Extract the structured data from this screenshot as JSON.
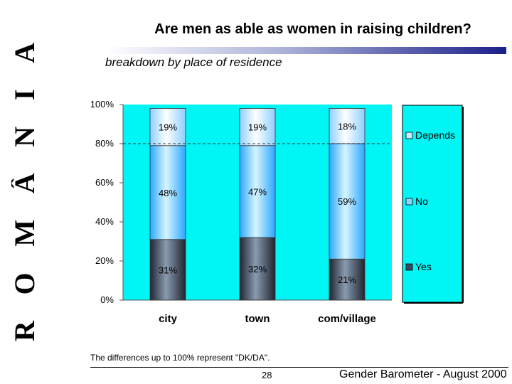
{
  "side_title": "ROMÂNIA",
  "header": {
    "title": "Are men as able as women in raising children?",
    "subtitle": "breakdown by place of residence"
  },
  "footer": {
    "note": "The differences up to 100% represent \"DK/DA\".",
    "page": "28",
    "source": "Gender Barometer - August 2000"
  },
  "colors": {
    "plot_background": "#00f5f5",
    "yes": "#3a4a5e",
    "no": "#8fd4ff",
    "depends": "#c8ecff"
  },
  "chart_data": {
    "type": "bar",
    "stacked": true,
    "categories": [
      "city",
      "town",
      "com/village"
    ],
    "series": [
      {
        "name": "Yes",
        "values": [
          31,
          32,
          21
        ],
        "labels": [
          "31%",
          "32%",
          "21%"
        ]
      },
      {
        "name": "No",
        "values": [
          48,
          47,
          59
        ],
        "labels": [
          "48%",
          "47%",
          "59%"
        ]
      },
      {
        "name": "Depends",
        "values": [
          19,
          19,
          18
        ],
        "labels": [
          "19%",
          "19%",
          "18%"
        ]
      }
    ],
    "ylim": [
      0,
      100
    ],
    "yticks": [
      "0%",
      "20%",
      "40%",
      "60%",
      "80%",
      "100%"
    ],
    "reference_line": 80,
    "legend_position": "right",
    "grid": false
  }
}
